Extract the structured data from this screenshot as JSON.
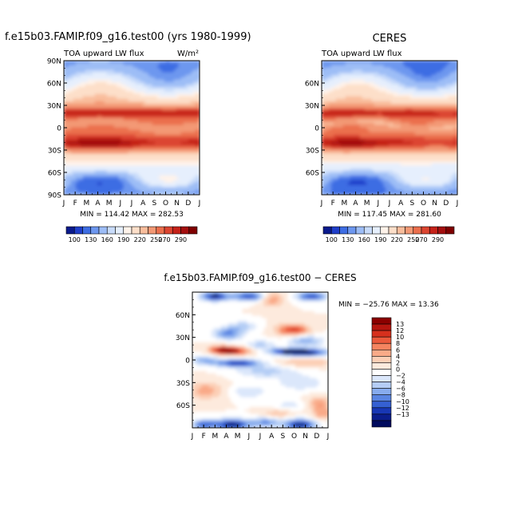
{
  "figure": {
    "width_note": "three contour plots of TOA upward LW flux"
  },
  "chart_data": [
    {
      "type": "heatmap",
      "title": "f.e15b03.FAMIP.f09_g16.test00 (yrs 1980-1999)",
      "subtitle": "TOA upward LW flux",
      "units_label": "W/m²",
      "x_tick_labels": [
        "J",
        "F",
        "M",
        "A",
        "M",
        "J",
        "J",
        "A",
        "S",
        "O",
        "N",
        "D",
        "J"
      ],
      "y_tick_labels": [
        "90N",
        "60N",
        "30N",
        "0",
        "30S",
        "60S",
        "90S"
      ],
      "ylim": [
        -90,
        90
      ],
      "stats": "MIN = 114.42  MAX = 282.53",
      "colorbar_labels": [
        "100",
        "130",
        "160",
        "190",
        "220",
        "250",
        "270",
        "290"
      ],
      "colorbar_colors": [
        "#0a1a8c",
        "#1f3ec9",
        "#3d6de3",
        "#6d97ef",
        "#9dbdf6",
        "#c8dbfa",
        "#e6effd",
        "#fff3ea",
        "#fddfc9",
        "#f9bd9c",
        "#f39975",
        "#eb6f4d",
        "#dc4530",
        "#c52219",
        "#a40f0f",
        "#7f0000"
      ],
      "contour_levels": [
        100,
        110,
        130,
        140,
        160,
        170,
        190,
        200,
        220,
        230,
        250,
        260,
        270,
        280,
        290
      ]
    },
    {
      "type": "heatmap",
      "title": "CERES",
      "subtitle": "TOA upward LW flux",
      "x_tick_labels": [
        "J",
        "F",
        "M",
        "A",
        "M",
        "J",
        "J",
        "A",
        "S",
        "O",
        "N",
        "D",
        "J"
      ],
      "y_tick_labels": [
        "60N",
        "30N",
        "0",
        "30S",
        "60S"
      ],
      "ylim": [
        -90,
        90
      ],
      "stats": "MIN = 117.45  MAX = 281.60",
      "colorbar_labels": [
        "100",
        "130",
        "160",
        "190",
        "220",
        "250",
        "270",
        "290"
      ]
    },
    {
      "type": "heatmap",
      "title": "f.e15b03.FAMIP.f09_g16.test00 − CERES",
      "x_tick_labels": [
        "J",
        "F",
        "M",
        "A",
        "M",
        "J",
        "J",
        "A",
        "S",
        "O",
        "N",
        "D",
        "J"
      ],
      "y_tick_labels": [
        "60N",
        "30N",
        "0",
        "30S",
        "60S"
      ],
      "ylim": [
        -90,
        90
      ],
      "stats": "MIN = −25.76  MAX =  13.36",
      "colorbar_labels": [
        "13",
        "12",
        "10",
        "8",
        "6",
        "4",
        "2",
        "0",
        "−2",
        "−4",
        "−6",
        "−8",
        "−10",
        "−12",
        "−13"
      ],
      "colorbar_colors": [
        "#8b0000",
        "#b5150f",
        "#d6301d",
        "#eb5a3c",
        "#f58460",
        "#f9aa88",
        "#fccfb6",
        "#fdeadd",
        "#ffffff",
        "#dbe7fb",
        "#b4cdf5",
        "#87acee",
        "#5a85e2",
        "#3560d2",
        "#1837b5",
        "#0b1d8c",
        "#000b5e"
      ]
    }
  ]
}
